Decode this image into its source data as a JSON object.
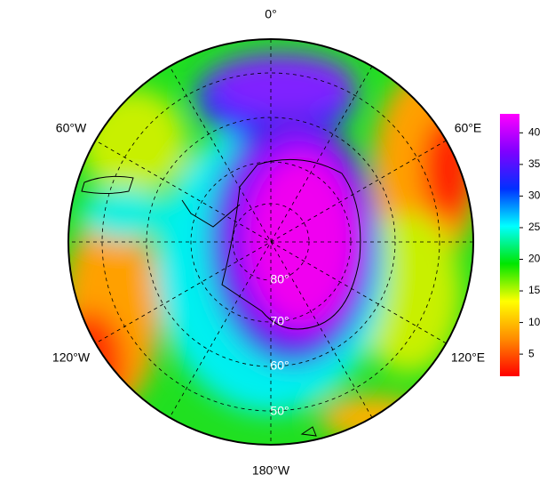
{
  "map": {
    "meridian_labels": [
      "0°",
      "60°E",
      "120°E",
      "180°W",
      "120°W",
      "60°W"
    ],
    "latitude_labels": [
      "80°",
      "70°",
      "60°",
      "50°"
    ],
    "colorbar": {
      "range": [
        1.5,
        43
      ],
      "ticks": [
        5,
        10,
        15,
        20,
        25,
        30,
        35,
        40
      ],
      "colors": [
        "#ff0000",
        "#ff8c00",
        "#ffff00",
        "#00e600",
        "#00ffff",
        "#0030ff",
        "#8000ff",
        "#ff00ff"
      ]
    }
  }
}
